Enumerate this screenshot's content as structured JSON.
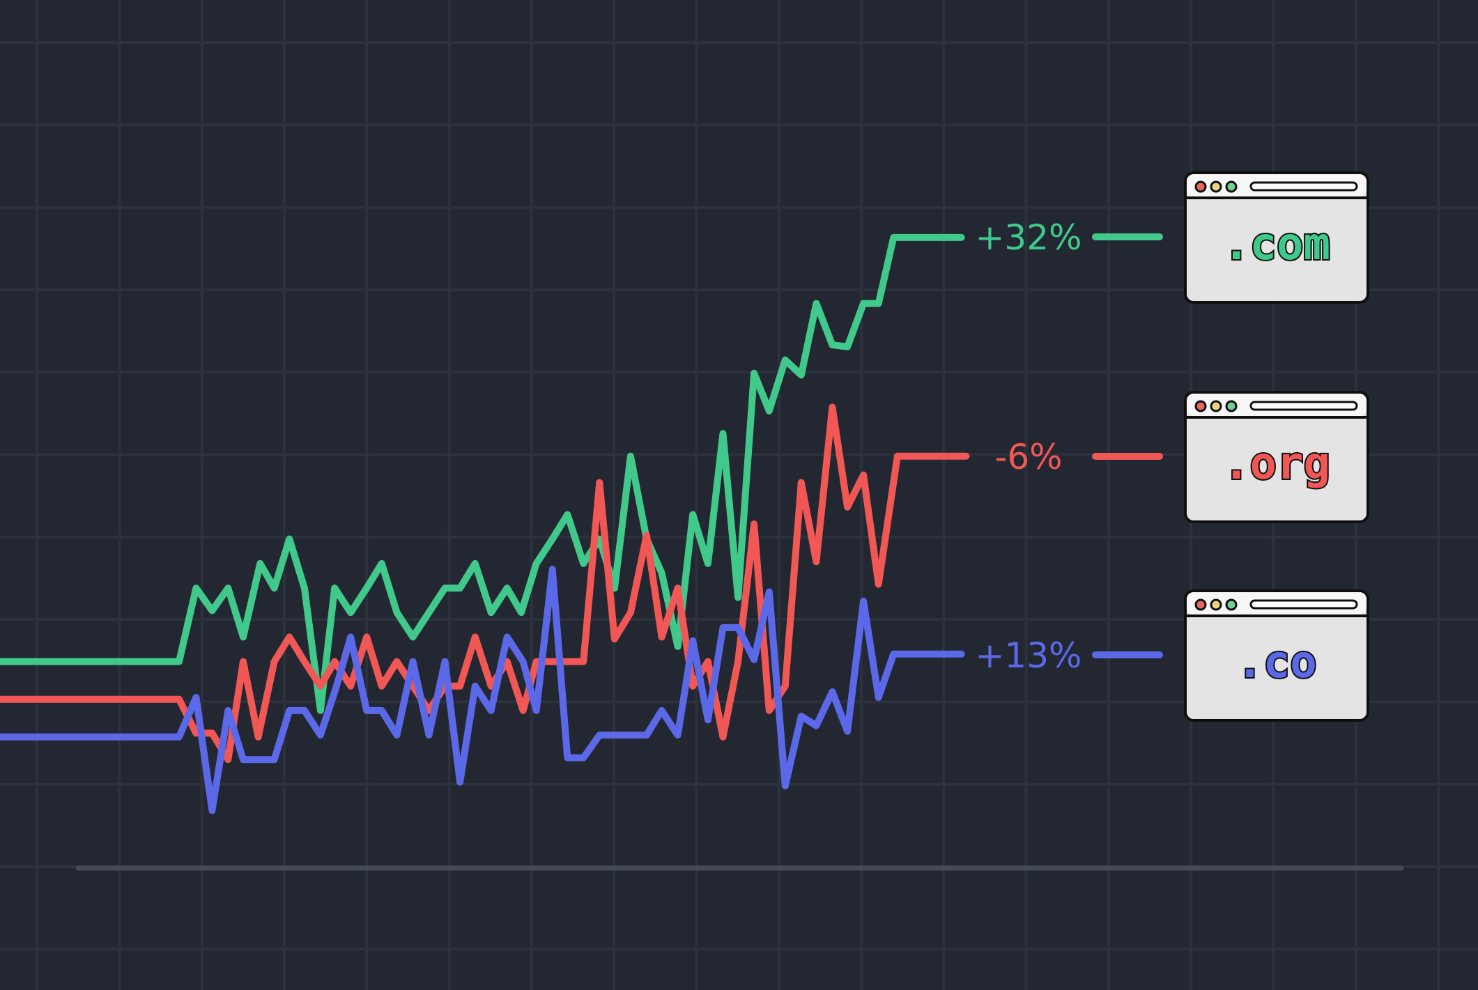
{
  "chart_data": {
    "type": "line",
    "title": "",
    "xlabel": "",
    "ylabel": "",
    "grid": true,
    "colors": {
      "background": "#222731",
      "grid": "#2c323c",
      "baseline": "#454b55",
      "card_fill": "#e4e4e4",
      "card_stroke": "#0f0f0f",
      "dot_red": "#e8665e",
      "dot_yellow": "#e8d77c",
      "dot_green": "#6fcf97"
    },
    "series": [
      {
        "name": ".com",
        "change_label": "+32%",
        "color": "#40c98a",
        "points": [
          [
            0,
            702
          ],
          [
            190,
            702
          ],
          [
            208,
            624
          ],
          [
            225,
            648
          ],
          [
            242,
            624
          ],
          [
            258,
            676
          ],
          [
            276,
            598
          ],
          [
            291,
            624
          ],
          [
            307,
            572
          ],
          [
            323,
            624
          ],
          [
            340,
            754
          ],
          [
            355,
            624
          ],
          [
            372,
            650
          ],
          [
            389,
            624
          ],
          [
            405,
            598
          ],
          [
            421,
            650
          ],
          [
            438,
            676
          ],
          [
            455,
            650
          ],
          [
            472,
            624
          ],
          [
            488,
            624
          ],
          [
            504,
            598
          ],
          [
            521,
            650
          ],
          [
            538,
            624
          ],
          [
            553,
            650
          ],
          [
            569,
            598
          ],
          [
            586,
            572
          ],
          [
            602,
            546
          ],
          [
            619,
            598
          ],
          [
            636,
            572
          ],
          [
            652,
            624
          ],
          [
            669,
            484
          ],
          [
            686,
            572
          ],
          [
            702,
            608
          ],
          [
            719,
            686
          ],
          [
            735,
            546
          ],
          [
            751,
            598
          ],
          [
            767,
            460
          ],
          [
            783,
            634
          ],
          [
            800,
            396
          ],
          [
            816,
            436
          ],
          [
            833,
            382
          ],
          [
            850,
            398
          ],
          [
            866,
            322
          ],
          [
            883,
            366
          ],
          [
            899,
            368
          ],
          [
            916,
            322
          ],
          [
            932,
            322
          ],
          [
            948,
            252
          ],
          [
            1020,
            252
          ]
        ]
      },
      {
        "name": ".org",
        "change_label": "-6%",
        "color": "#f05755",
        "points": [
          [
            0,
            742
          ],
          [
            190,
            742
          ],
          [
            208,
            778
          ],
          [
            225,
            778
          ],
          [
            242,
            806
          ],
          [
            258,
            702
          ],
          [
            274,
            782
          ],
          [
            291,
            702
          ],
          [
            307,
            676
          ],
          [
            323,
            702
          ],
          [
            340,
            728
          ],
          [
            355,
            702
          ],
          [
            372,
            728
          ],
          [
            389,
            676
          ],
          [
            405,
            728
          ],
          [
            421,
            702
          ],
          [
            438,
            728
          ],
          [
            455,
            754
          ],
          [
            472,
            728
          ],
          [
            488,
            728
          ],
          [
            504,
            676
          ],
          [
            521,
            728
          ],
          [
            538,
            702
          ],
          [
            555,
            754
          ],
          [
            569,
            702
          ],
          [
            586,
            702
          ],
          [
            602,
            702
          ],
          [
            619,
            702
          ],
          [
            636,
            512
          ],
          [
            652,
            678
          ],
          [
            669,
            650
          ],
          [
            686,
            568
          ],
          [
            702,
            676
          ],
          [
            719,
            624
          ],
          [
            735,
            728
          ],
          [
            751,
            702
          ],
          [
            767,
            782
          ],
          [
            783,
            702
          ],
          [
            800,
            556
          ],
          [
            816,
            754
          ],
          [
            833,
            728
          ],
          [
            850,
            512
          ],
          [
            866,
            596
          ],
          [
            883,
            432
          ],
          [
            899,
            538
          ],
          [
            916,
            504
          ],
          [
            932,
            620
          ],
          [
            952,
            484
          ],
          [
            1025,
            484
          ]
        ]
      },
      {
        "name": ".co",
        "change_label": "+13%",
        "color": "#5b69e8",
        "points": [
          [
            0,
            782
          ],
          [
            190,
            782
          ],
          [
            208,
            740
          ],
          [
            225,
            860
          ],
          [
            242,
            754
          ],
          [
            258,
            806
          ],
          [
            274,
            806
          ],
          [
            291,
            806
          ],
          [
            307,
            754
          ],
          [
            323,
            754
          ],
          [
            340,
            780
          ],
          [
            357,
            728
          ],
          [
            372,
            676
          ],
          [
            389,
            754
          ],
          [
            405,
            754
          ],
          [
            421,
            780
          ],
          [
            438,
            702
          ],
          [
            455,
            780
          ],
          [
            472,
            702
          ],
          [
            488,
            830
          ],
          [
            504,
            728
          ],
          [
            521,
            754
          ],
          [
            538,
            676
          ],
          [
            555,
            702
          ],
          [
            569,
            754
          ],
          [
            586,
            604
          ],
          [
            602,
            804
          ],
          [
            619,
            804
          ],
          [
            636,
            780
          ],
          [
            652,
            780
          ],
          [
            669,
            780
          ],
          [
            686,
            780
          ],
          [
            702,
            754
          ],
          [
            719,
            780
          ],
          [
            735,
            680
          ],
          [
            751,
            764
          ],
          [
            767,
            666
          ],
          [
            783,
            666
          ],
          [
            800,
            700
          ],
          [
            816,
            628
          ],
          [
            833,
            834
          ],
          [
            850,
            760
          ],
          [
            866,
            770
          ],
          [
            883,
            734
          ],
          [
            899,
            776
          ],
          [
            916,
            638
          ],
          [
            932,
            740
          ],
          [
            948,
            694
          ],
          [
            1020,
            694
          ]
        ]
      }
    ]
  }
}
